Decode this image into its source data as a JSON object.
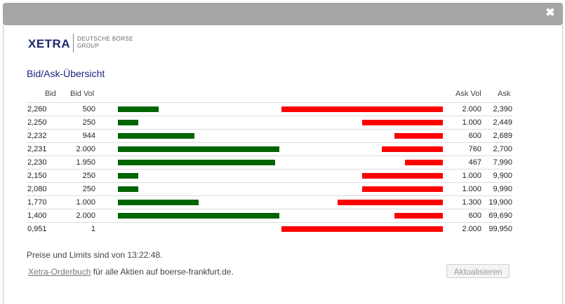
{
  "window": {
    "close_label": "✖"
  },
  "logo": {
    "brand": "XETRA",
    "group_line1": "DEUTSCHE BÖRSE",
    "group_line2": "GROUP"
  },
  "heading": "Bid/Ask-Übersicht",
  "columns": {
    "bid": "Bid",
    "bid_vol": "Bid Vol",
    "ask_vol": "Ask Vol",
    "ask": "Ask"
  },
  "orderbook": [
    {
      "bid": "2,260",
      "bid_vol": "500",
      "ask_vol": "2.000",
      "ask": "2,390"
    },
    {
      "bid": "2,250",
      "bid_vol": "250",
      "ask_vol": "1.000",
      "ask": "2,449"
    },
    {
      "bid": "2,232",
      "bid_vol": "944",
      "ask_vol": "600",
      "ask": "2,689"
    },
    {
      "bid": "2,231",
      "bid_vol": "2.000",
      "ask_vol": "760",
      "ask": "2,700"
    },
    {
      "bid": "2,230",
      "bid_vol": "1.950",
      "ask_vol": "467",
      "ask": "7,990"
    },
    {
      "bid": "2,150",
      "bid_vol": "250",
      "ask_vol": "1.000",
      "ask": "9,900"
    },
    {
      "bid": "2,080",
      "bid_vol": "250",
      "ask_vol": "1.000",
      "ask": "9,990"
    },
    {
      "bid": "1,770",
      "bid_vol": "1.000",
      "ask_vol": "1.300",
      "ask": "19,900"
    },
    {
      "bid": "1,400",
      "bid_vol": "2.000",
      "ask_vol": "600",
      "ask": "69,690"
    },
    {
      "bid": "0,951",
      "bid_vol": "1",
      "ask_vol": "2.000",
      "ask": "99,950"
    }
  ],
  "volume_bars": {
    "max_volume": 2000,
    "bid_volumes": [
      500,
      250,
      944,
      2000,
      1950,
      250,
      250,
      1000,
      2000,
      1
    ],
    "ask_volumes": [
      2000,
      1000,
      600,
      760,
      467,
      1000,
      1000,
      1300,
      600,
      2000
    ],
    "bid_color": "#006400",
    "ask_color": "#ff0000"
  },
  "footer": {
    "time_text": "Preise und Limits sind von 13:22:48.",
    "link_text": "Xetra-Orderbuch",
    "link_suffix": " für alle Aktien auf boerse-frankfurt.de."
  },
  "refresh_button": "Aktualisieren"
}
